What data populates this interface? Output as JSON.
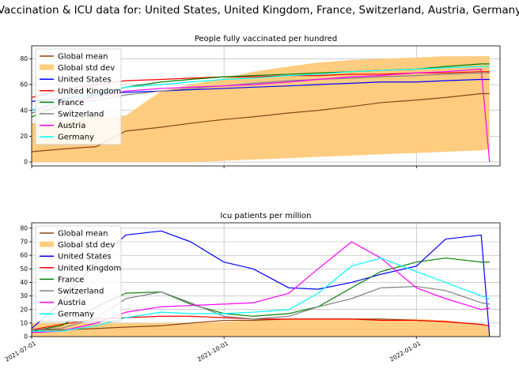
{
  "figure": {
    "title": "Vaccination & ICU data for: United States, United Kingdom, France, Switzerland, Austria, Germany"
  },
  "colors": {
    "global_mean": "#8b4513",
    "global_std": "#ffcc80",
    "united_states": "#0000ff",
    "united_kingdom": "#ff0000",
    "france": "#008000",
    "switzerland": "#808080",
    "austria": "#ff00ff",
    "germany": "#00ffff"
  },
  "chart_data": [
    {
      "type": "line",
      "title": "People fully vaccinated per hundred",
      "xlabel": "",
      "ylabel": "",
      "xlim": [
        "2021-07-01",
        "2022-02-10"
      ],
      "ylim": [
        -3,
        90
      ],
      "yticks": [
        0,
        20,
        40,
        60,
        80
      ],
      "xticks": [
        "2021-07-01",
        "2021-10-01",
        "2022-01-01"
      ],
      "grid": true,
      "legend": "upper-left",
      "x": [
        "2021-07-01",
        "2021-07-15",
        "2021-08-01",
        "2021-08-15",
        "2021-09-01",
        "2021-09-15",
        "2021-10-01",
        "2021-10-15",
        "2021-11-01",
        "2021-11-15",
        "2021-12-01",
        "2021-12-15",
        "2022-01-01",
        "2022-01-15",
        "2022-02-01",
        "2022-02-05"
      ],
      "band": {
        "name": "Global std dev",
        "lower": [
          0,
          0,
          0,
          0,
          0,
          0,
          1,
          2,
          3,
          4,
          5,
          6,
          7,
          8,
          9,
          10
        ],
        "upper": [
          30,
          32,
          34,
          36,
          55,
          60,
          65,
          70,
          74,
          77,
          79,
          80,
          81,
          82,
          82,
          82
        ]
      },
      "series": [
        {
          "name": "Global mean",
          "values": [
            8,
            10,
            12,
            24,
            27,
            30,
            33,
            35,
            38,
            40,
            43,
            46,
            48,
            50,
            53,
            53
          ]
        },
        {
          "name": "United States",
          "values": [
            47,
            49,
            52,
            54,
            55,
            56,
            57,
            58,
            59,
            60,
            61,
            62,
            62,
            63,
            64,
            64
          ]
        },
        {
          "name": "United Kingdom",
          "values": [
            50,
            56,
            60,
            63,
            64,
            65,
            66,
            66,
            67,
            67,
            68,
            68,
            69,
            69,
            70,
            70
          ]
        },
        {
          "name": "France",
          "values": [
            35,
            44,
            52,
            58,
            62,
            64,
            66,
            67,
            68,
            69,
            70,
            71,
            72,
            74,
            76,
            76
          ]
        },
        {
          "name": "Switzerland",
          "values": [
            38,
            44,
            48,
            52,
            55,
            57,
            59,
            61,
            63,
            64,
            65,
            66,
            67,
            68,
            69,
            69
          ]
        },
        {
          "name": "Austria",
          "values": [
            40,
            46,
            50,
            55,
            57,
            58,
            59,
            60,
            62,
            64,
            66,
            67,
            69,
            70,
            72,
            0
          ]
        },
        {
          "name": "Germany",
          "values": [
            40,
            48,
            53,
            58,
            60,
            62,
            64,
            65,
            67,
            68,
            70,
            71,
            72,
            73,
            74,
            74
          ]
        }
      ]
    },
    {
      "type": "line",
      "title": "Icu patients per million",
      "xlabel": "",
      "ylabel": "",
      "xlim": [
        "2021-07-01",
        "2022-02-10"
      ],
      "ylim": [
        0,
        84
      ],
      "yticks": [
        0,
        10,
        20,
        30,
        40,
        50,
        60,
        70,
        80
      ],
      "xticks": [
        "2021-07-01",
        "2021-10-01",
        "2022-01-01"
      ],
      "grid": true,
      "legend": "upper-left",
      "x": [
        "2021-07-01",
        "2021-07-15",
        "2021-08-01",
        "2021-08-15",
        "2021-09-01",
        "2021-09-15",
        "2021-10-01",
        "2021-10-15",
        "2021-11-01",
        "2021-11-15",
        "2021-12-01",
        "2021-12-15",
        "2022-01-01",
        "2022-01-15",
        "2022-02-01",
        "2022-02-05"
      ],
      "band": {
        "name": "Global std dev",
        "lower": [
          0,
          0,
          0,
          0,
          0,
          0,
          0,
          0,
          0,
          0,
          0,
          0,
          0,
          0,
          0,
          0
        ],
        "upper": [
          10,
          10,
          10,
          10,
          10,
          10,
          11,
          12,
          13,
          13,
          13,
          13,
          13,
          12,
          9,
          8
        ]
      },
      "series": [
        {
          "name": "Global mean",
          "values": [
            5,
            5,
            6,
            7,
            8,
            10,
            12,
            12,
            13,
            13,
            13,
            13,
            12,
            11,
            9,
            8
          ]
        },
        {
          "name": "United States",
          "values": [
            6,
            25,
            55,
            75,
            78,
            70,
            55,
            50,
            36,
            35,
            40,
            46,
            52,
            72,
            75,
            0
          ]
        },
        {
          "name": "United Kingdom",
          "values": [
            5,
            9,
            13,
            14,
            15,
            15,
            14,
            13,
            13,
            13,
            13,
            12,
            12,
            11,
            9,
            8
          ]
        },
        {
          "name": "France",
          "values": [
            4,
            8,
            22,
            32,
            33,
            24,
            17,
            15,
            17,
            22,
            36,
            48,
            55,
            58,
            55,
            55
          ]
        },
        {
          "name": "Switzerland",
          "values": [
            5,
            6,
            14,
            28,
            33,
            25,
            15,
            13,
            15,
            22,
            28,
            36,
            37,
            34,
            25,
            24
          ]
        },
        {
          "name": "Austria",
          "values": [
            3,
            4,
            10,
            18,
            22,
            23,
            24,
            25,
            32,
            50,
            70,
            58,
            36,
            28,
            20,
            21
          ]
        },
        {
          "name": "Germany",
          "values": [
            4,
            4,
            8,
            14,
            18,
            17,
            17,
            18,
            20,
            32,
            52,
            58,
            48,
            40,
            30,
            28
          ]
        }
      ]
    }
  ],
  "legend_items": [
    {
      "key": "global_mean",
      "label": "Global mean",
      "kind": "line"
    },
    {
      "key": "global_std",
      "label": "Global std dev",
      "kind": "patch"
    },
    {
      "key": "united_states",
      "label": "United States",
      "kind": "line"
    },
    {
      "key": "united_kingdom",
      "label": "United Kingdom",
      "kind": "line"
    },
    {
      "key": "france",
      "label": "France",
      "kind": "line"
    },
    {
      "key": "switzerland",
      "label": "Switzerland",
      "kind": "line"
    },
    {
      "key": "austria",
      "label": "Austria",
      "kind": "line"
    },
    {
      "key": "germany",
      "label": "Germany",
      "kind": "line"
    }
  ]
}
